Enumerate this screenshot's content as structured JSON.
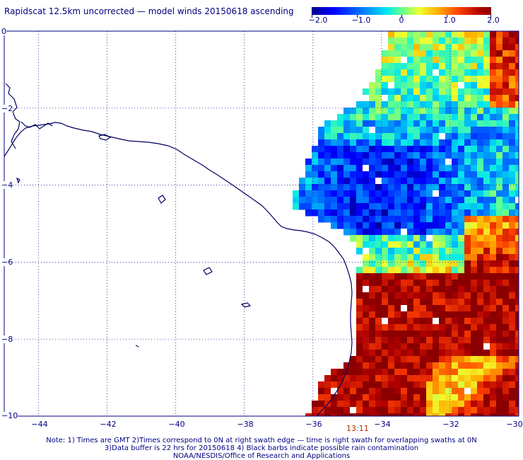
{
  "title": "Rapidscat 12.5km uncorrected — model winds 20150618 ascending",
  "colorbar": {
    "tick_labels": [
      "−2.0",
      "−1.0",
      "0",
      "1.0",
      "2.0"
    ],
    "range": [
      -2.0,
      2.0
    ]
  },
  "map": {
    "lon_ticks": [
      "−44",
      "−42",
      "−40",
      "−38",
      "−36",
      "−34",
      "−32",
      "−30"
    ],
    "lat_ticks": [
      "0",
      "−2",
      "−4",
      "−6",
      "−8",
      "−10"
    ],
    "lon_range": [
      -45,
      -30
    ],
    "lat_range": [
      -10,
      0
    ],
    "grid": "dotted",
    "coastline_color": "#000060"
  },
  "swath": {
    "time_label": "13:11"
  },
  "notes": [
    "Note: 1) Times are GMT 2)Times correspond to 0N at right swath edge — time is right swath for overlapping swaths at 0N",
    "3)Data buffer is 22 hrs for 20150618 4) Black barbs indicate possible rain contamination",
    "NOAA/NESDIS/Office of Research and Applications"
  ]
}
